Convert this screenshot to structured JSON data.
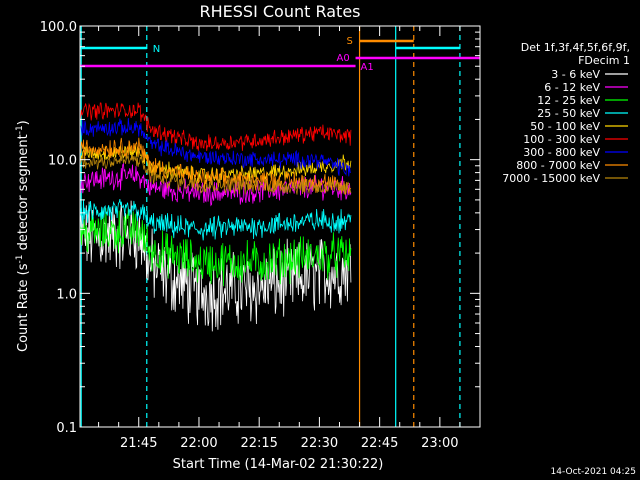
{
  "chart_data": {
    "type": "line",
    "title": "RHESSI Count Rates",
    "xlabel": "Start Time (14-Mar-02 21:30:22)",
    "ylabel": "Count Rate (s⁻¹ detector segment⁻¹)",
    "ylabel_main": "Count Rate (s",
    "ylabel_sup1": "-1",
    "ylabel_mid": " detector segment",
    "ylabel_sup2": "-1",
    "ylabel_end": ")",
    "y_scale": "log",
    "ylim": [
      0.1,
      100
    ],
    "y_ticks": [
      "0.1",
      "1.0",
      "10.0",
      "100.0"
    ],
    "xlim": [
      "21:30:22",
      "23:10:00"
    ],
    "x_ticks": [
      "21:45",
      "22:00",
      "22:15",
      "22:30",
      "22:45",
      "23:00"
    ],
    "grid": false,
    "legend_placement": "right",
    "legend_header": [
      "Det 1f,3f,4f,5f,6f,9f,",
      "FDecim 1"
    ],
    "timestamp": "14-Oct-2021 04:25",
    "series": [
      {
        "name": "3 - 6 keV",
        "color": "#ffffff",
        "x": [
          "21:30",
          "21:45",
          "21:48",
          "22:00",
          "22:15",
          "22:30",
          "22:38"
        ],
        "values": [
          2.6,
          2.8,
          1.6,
          1.0,
          1.1,
          1.4,
          1.5
        ]
      },
      {
        "name": "6 - 12 keV",
        "color": "#ff00ff",
        "x": [
          "21:30",
          "21:45",
          "21:48",
          "22:00",
          "22:15",
          "22:30",
          "22:38"
        ],
        "values": [
          7.0,
          7.6,
          6.2,
          5.6,
          5.8,
          6.3,
          6.0
        ]
      },
      {
        "name": "12 - 25 keV",
        "color": "#00ff00",
        "x": [
          "21:30",
          "21:45",
          "21:48",
          "22:00",
          "22:15",
          "22:30",
          "22:38"
        ],
        "values": [
          2.8,
          3.0,
          2.1,
          1.7,
          1.7,
          1.9,
          1.9
        ]
      },
      {
        "name": "25 - 50 keV",
        "color": "#00ffff",
        "x": [
          "21:30",
          "21:45",
          "21:48",
          "22:00",
          "22:15",
          "22:30",
          "22:38"
        ],
        "values": [
          4.0,
          4.2,
          3.3,
          3.0,
          3.2,
          3.5,
          3.5
        ]
      },
      {
        "name": "50 - 100 keV",
        "color": "#ffd700",
        "x": [
          "21:30",
          "21:45",
          "21:48",
          "22:00",
          "22:15",
          "22:30",
          "22:38"
        ],
        "values": [
          11,
          11.5,
          8.8,
          7.6,
          7.8,
          8.8,
          9.8
        ]
      },
      {
        "name": "100 - 300 keV",
        "color": "#ff0000",
        "x": [
          "21:30",
          "21:45",
          "21:48",
          "22:00",
          "22:15",
          "22:30",
          "22:38"
        ],
        "values": [
          23,
          23.5,
          17,
          13,
          14,
          16,
          15
        ]
      },
      {
        "name": "300 - 800 keV",
        "color": "#0000ff",
        "x": [
          "21:30",
          "21:45",
          "21:48",
          "22:00",
          "22:15",
          "22:30",
          "22:38"
        ],
        "values": [
          17,
          17.5,
          13,
          10.5,
          10,
          10,
          8.2
        ]
      },
      {
        "name": "800 - 7000 keV",
        "color": "#ff8c00",
        "x": [
          "21:30",
          "21:45",
          "21:48",
          "22:00",
          "22:15",
          "22:30",
          "22:38"
        ],
        "values": [
          12,
          12.5,
          9,
          7.2,
          7,
          6.8,
          6
        ]
      },
      {
        "name": "7000 - 15000 keV",
        "color": "#b8860b",
        "x": [
          "21:30",
          "21:45",
          "21:48",
          "22:00",
          "22:15",
          "22:30",
          "22:38"
        ],
        "values": [
          9.5,
          10,
          7.5,
          6.5,
          6.4,
          6.3,
          6
        ]
      }
    ],
    "annotations": [
      {
        "label": "N",
        "color": "#00ffff"
      },
      {
        "label": "S",
        "color": "#ff8c00"
      },
      {
        "label": "A0",
        "color": "#ff00ff"
      },
      {
        "label": "A1",
        "color": "#ff00ff"
      }
    ]
  }
}
